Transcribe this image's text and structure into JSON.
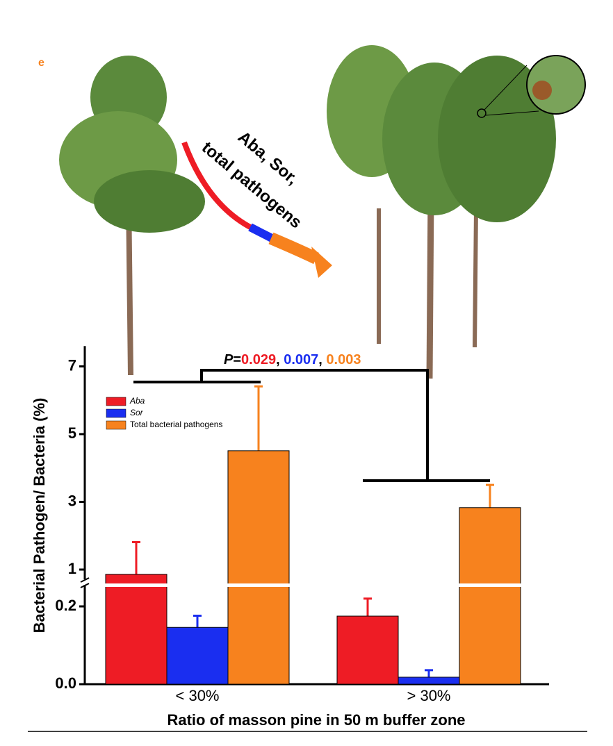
{
  "panel_label": "e",
  "arrow_text": [
    "Aba, Sor,",
    "total pathogens"
  ],
  "chart_data": {
    "type": "bar",
    "ylabel": "Bacterial Pathogen/ Bacteria (%)",
    "xlabel": "Ratio of masson pine in 50 m buffer zone",
    "categories": [
      "< 30%",
      "> 30%"
    ],
    "series": [
      {
        "name": "Aba",
        "color": "#ee1c25",
        "values": [
          0.86,
          0.175
        ],
        "errors": [
          0.95,
          0.045
        ]
      },
      {
        "name": "Sor",
        "color": "#1a2ef0",
        "values": [
          0.146,
          0.018
        ],
        "errors": [
          0.03,
          0.018
        ]
      },
      {
        "name": "Total bacterial pathogens",
        "color": "#f7821e",
        "values": [
          4.51,
          2.83
        ],
        "errors": [
          1.9,
          0.67
        ]
      }
    ],
    "ylim_lower": [
      0,
      0.25
    ],
    "ylim_upper": [
      0.6,
      7.6
    ],
    "yticks": [
      {
        "value": 0,
        "label": "0.0"
      },
      0.2,
      1,
      3,
      5,
      7
    ],
    "significance": {
      "prefix": "P",
      "equals": "=",
      "separator": ", ",
      "values": [
        "0.029",
        "0.007",
        "0.003"
      ]
    }
  }
}
